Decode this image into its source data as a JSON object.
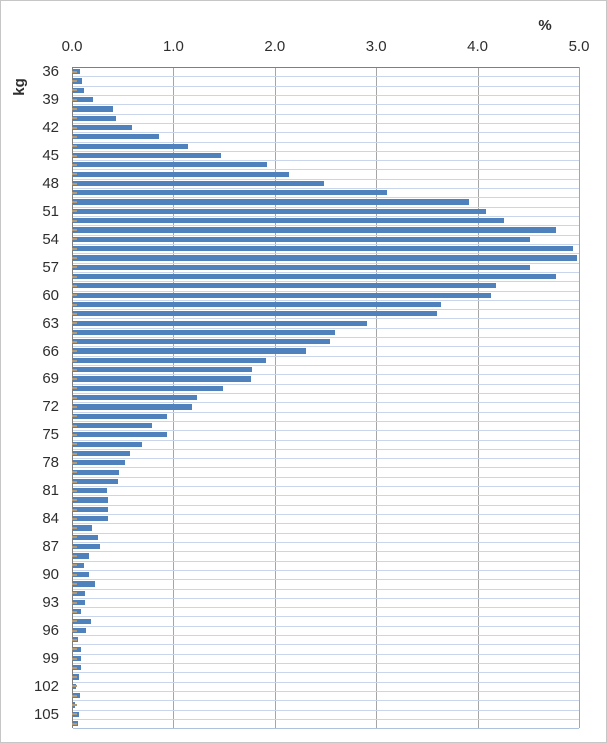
{
  "chart_data": {
    "type": "bar",
    "orientation": "horizontal",
    "title": "",
    "xlabel": "%",
    "ylabel": "kg",
    "xlim": [
      0.0,
      5.0
    ],
    "x_tick_values": [
      0.0,
      1.0,
      2.0,
      3.0,
      4.0,
      5.0
    ],
    "x_tick_labels": [
      "0.0",
      "1.0",
      "2.0",
      "3.0",
      "4.0",
      "5.0"
    ],
    "y_tick_labels": [
      "36",
      "39",
      "42",
      "45",
      "48",
      "51",
      "54",
      "57",
      "60",
      "63",
      "66",
      "69",
      "72",
      "75",
      "78",
      "81",
      "84",
      "87",
      "90",
      "93",
      "96",
      "99",
      "102",
      "105"
    ],
    "grid": "both",
    "legend": "none",
    "categories": [
      36,
      37,
      38,
      39,
      40,
      41,
      42,
      43,
      44,
      45,
      46,
      47,
      48,
      49,
      50,
      51,
      52,
      53,
      54,
      55,
      56,
      57,
      58,
      59,
      60,
      61,
      62,
      63,
      64,
      65,
      66,
      67,
      68,
      69,
      70,
      71,
      72,
      73,
      74,
      75,
      76,
      77,
      78,
      79,
      80,
      81,
      82,
      83,
      84,
      85,
      86,
      87,
      88,
      89,
      90,
      91,
      92,
      93,
      94,
      95,
      96,
      97,
      98,
      99,
      100,
      101,
      102,
      103,
      104,
      105,
      106
    ],
    "values": [
      0.07,
      0.09,
      0.11,
      0.2,
      0.39,
      0.42,
      0.58,
      0.85,
      1.13,
      1.46,
      1.91,
      2.13,
      2.48,
      3.1,
      3.91,
      4.07,
      4.25,
      4.76,
      4.51,
      4.93,
      4.97,
      4.51,
      4.76,
      4.17,
      4.12,
      3.63,
      3.59,
      2.9,
      2.58,
      2.53,
      2.3,
      1.9,
      1.77,
      1.76,
      1.48,
      1.22,
      1.17,
      0.93,
      0.78,
      0.93,
      0.68,
      0.56,
      0.51,
      0.45,
      0.44,
      0.34,
      0.35,
      0.35,
      0.35,
      0.19,
      0.25,
      0.27,
      0.16,
      0.11,
      0.16,
      0.22,
      0.12,
      0.12,
      0.08,
      0.18,
      0.13,
      0.05,
      0.08,
      0.08,
      0.08,
      0.06,
      0.03,
      0.07,
      0.02,
      0.06,
      0.05
    ],
    "colors": {
      "bar": "#4f81bd",
      "category_tick": "#b29a76",
      "h_gridline": "#c8d5ea",
      "v_gridline": "#a6a6a6",
      "axis_line": "#7f7f7f",
      "label_text": "#2e2e2e",
      "frame_border": "#c6c6c6"
    }
  }
}
